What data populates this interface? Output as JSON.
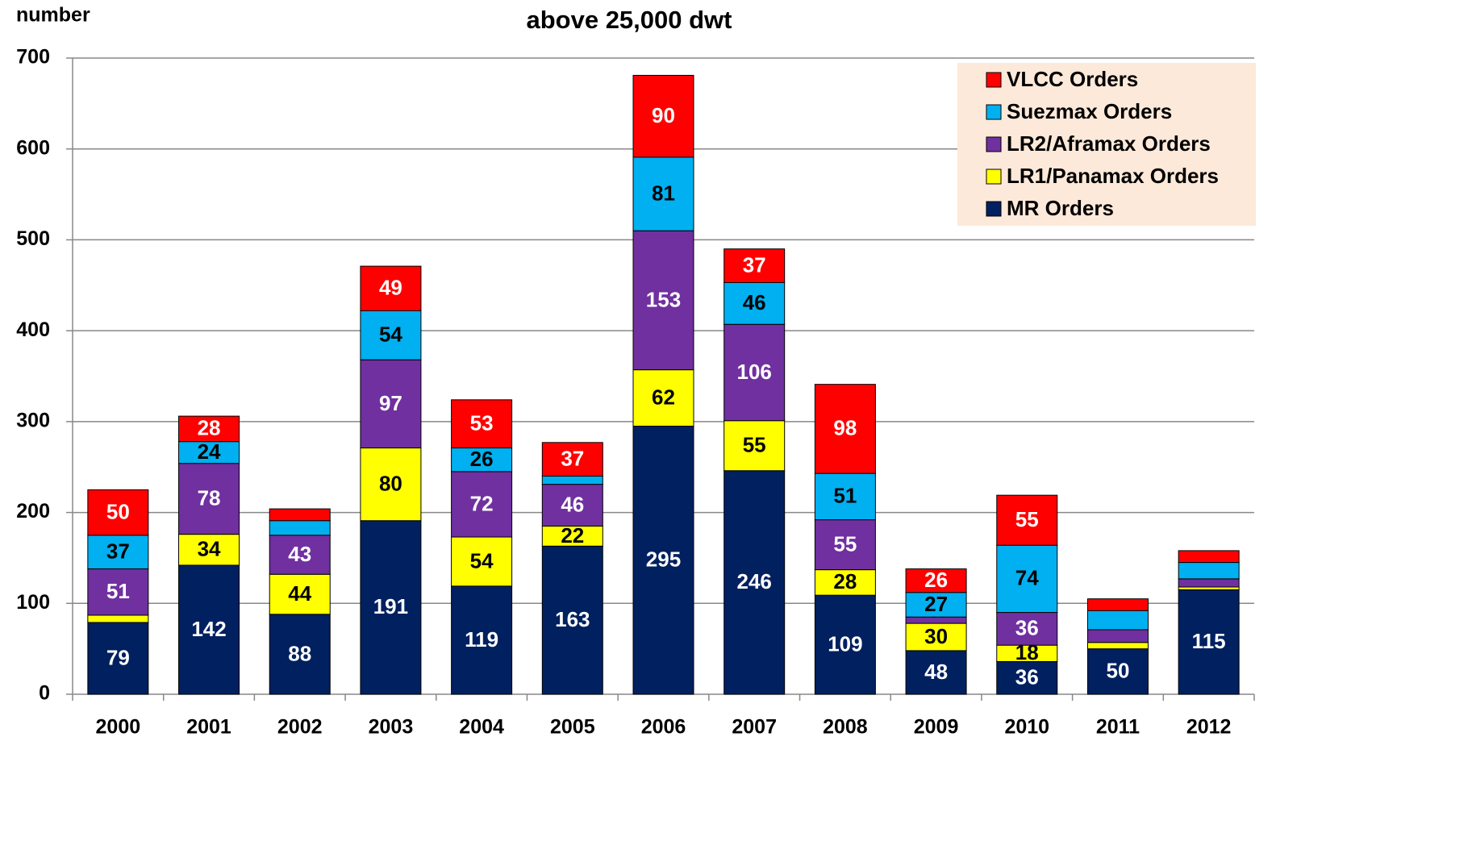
{
  "chart_data": {
    "type": "stacked_bar",
    "title": "above 25,000 dwt",
    "y_label": "number",
    "categories": [
      "2000",
      "2001",
      "2002",
      "2003",
      "2004",
      "2005",
      "2006",
      "2007",
      "2008",
      "2009",
      "2010",
      "2011",
      "2012"
    ],
    "series": [
      {
        "name": "MR Orders",
        "color": "#002060",
        "label_color": "#ffffff",
        "values": [
          79,
          142,
          88,
          191,
          119,
          163,
          295,
          246,
          109,
          48,
          36,
          50,
          115
        ],
        "value_labels": [
          "79",
          "142",
          "88",
          "191",
          "119",
          "163",
          "295",
          "246",
          "109",
          "48",
          "36",
          "50",
          "115"
        ]
      },
      {
        "name": "LR1/Panamax Orders",
        "color": "#ffff00",
        "label_color": "#000000",
        "values": [
          8,
          34,
          44,
          80,
          54,
          22,
          62,
          55,
          28,
          30,
          18,
          7,
          3
        ],
        "value_labels": [
          null,
          "34",
          "44",
          "80",
          "54",
          "22",
          "62",
          "55",
          "28",
          "30",
          "18",
          null,
          null
        ]
      },
      {
        "name": "LR2/Aframax Orders",
        "color": "#7030a0",
        "label_color": "#ffffff",
        "values": [
          51,
          78,
          43,
          97,
          72,
          46,
          153,
          106,
          55,
          7,
          36,
          14,
          9
        ],
        "value_labels": [
          "51",
          "78",
          "43",
          "97",
          "72",
          "46",
          "153",
          "106",
          "55",
          null,
          "36",
          null,
          null
        ]
      },
      {
        "name": "Suezmax Orders",
        "color": "#00b0f0",
        "label_color": "#000000",
        "values": [
          37,
          24,
          16,
          54,
          26,
          9,
          81,
          46,
          51,
          27,
          74,
          21,
          18
        ],
        "value_labels": [
          "37",
          "24",
          null,
          "54",
          "26",
          null,
          "81",
          "46",
          "51",
          "27",
          "74",
          null,
          null
        ]
      },
      {
        "name": "VLCC Orders",
        "color": "#ff0000",
        "label_color": "#ffffff",
        "values": [
          50,
          28,
          13,
          49,
          53,
          37,
          90,
          37,
          98,
          26,
          55,
          13,
          13
        ],
        "value_labels": [
          "50",
          "28",
          null,
          "49",
          "53",
          "37",
          "90",
          "37",
          "98",
          "26",
          "55",
          null,
          null
        ]
      }
    ],
    "ylim": [
      0,
      700
    ],
    "yticks": [
      0,
      100,
      200,
      300,
      400,
      500,
      600,
      700
    ],
    "grid": true,
    "legend": "top-right"
  }
}
